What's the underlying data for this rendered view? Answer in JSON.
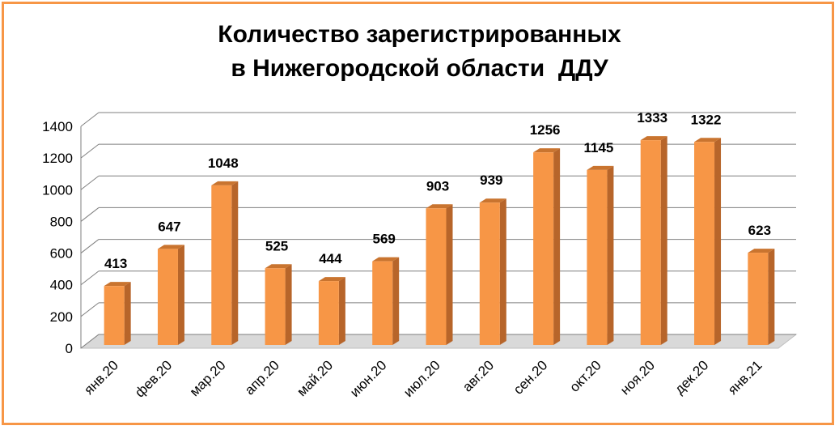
{
  "title_lines": [
    "Количество зарегистрированных",
    "в Нижегородской области  ДДУ"
  ],
  "colors": {
    "frame": "#f79646",
    "bar_front": "#f79646",
    "bar_side": "#b7652a",
    "bar_top": "#c9742f",
    "floor": "#d9d9d9",
    "grid": "#7f7f7f"
  },
  "chart_data": {
    "type": "bar",
    "title": "Количество зарегистрированных в Нижегородской области  ДДУ",
    "categories": [
      "янв.20",
      "фев.20",
      "мар.20",
      "апр.20",
      "май.20",
      "июн.20",
      "июл.20",
      "авг.20",
      "сен.20",
      "окт.20",
      "ноя.20",
      "дек.20",
      "янв.21"
    ],
    "values": [
      413,
      647,
      1048,
      525,
      444,
      569,
      903,
      939,
      1256,
      1145,
      1333,
      1322,
      623
    ],
    "ylim": [
      0,
      1400
    ],
    "yticks": [
      0,
      200,
      400,
      600,
      800,
      1000,
      1200,
      1400
    ],
    "grid": true,
    "legend": "none",
    "data_labels": true,
    "style": "3d-column"
  }
}
